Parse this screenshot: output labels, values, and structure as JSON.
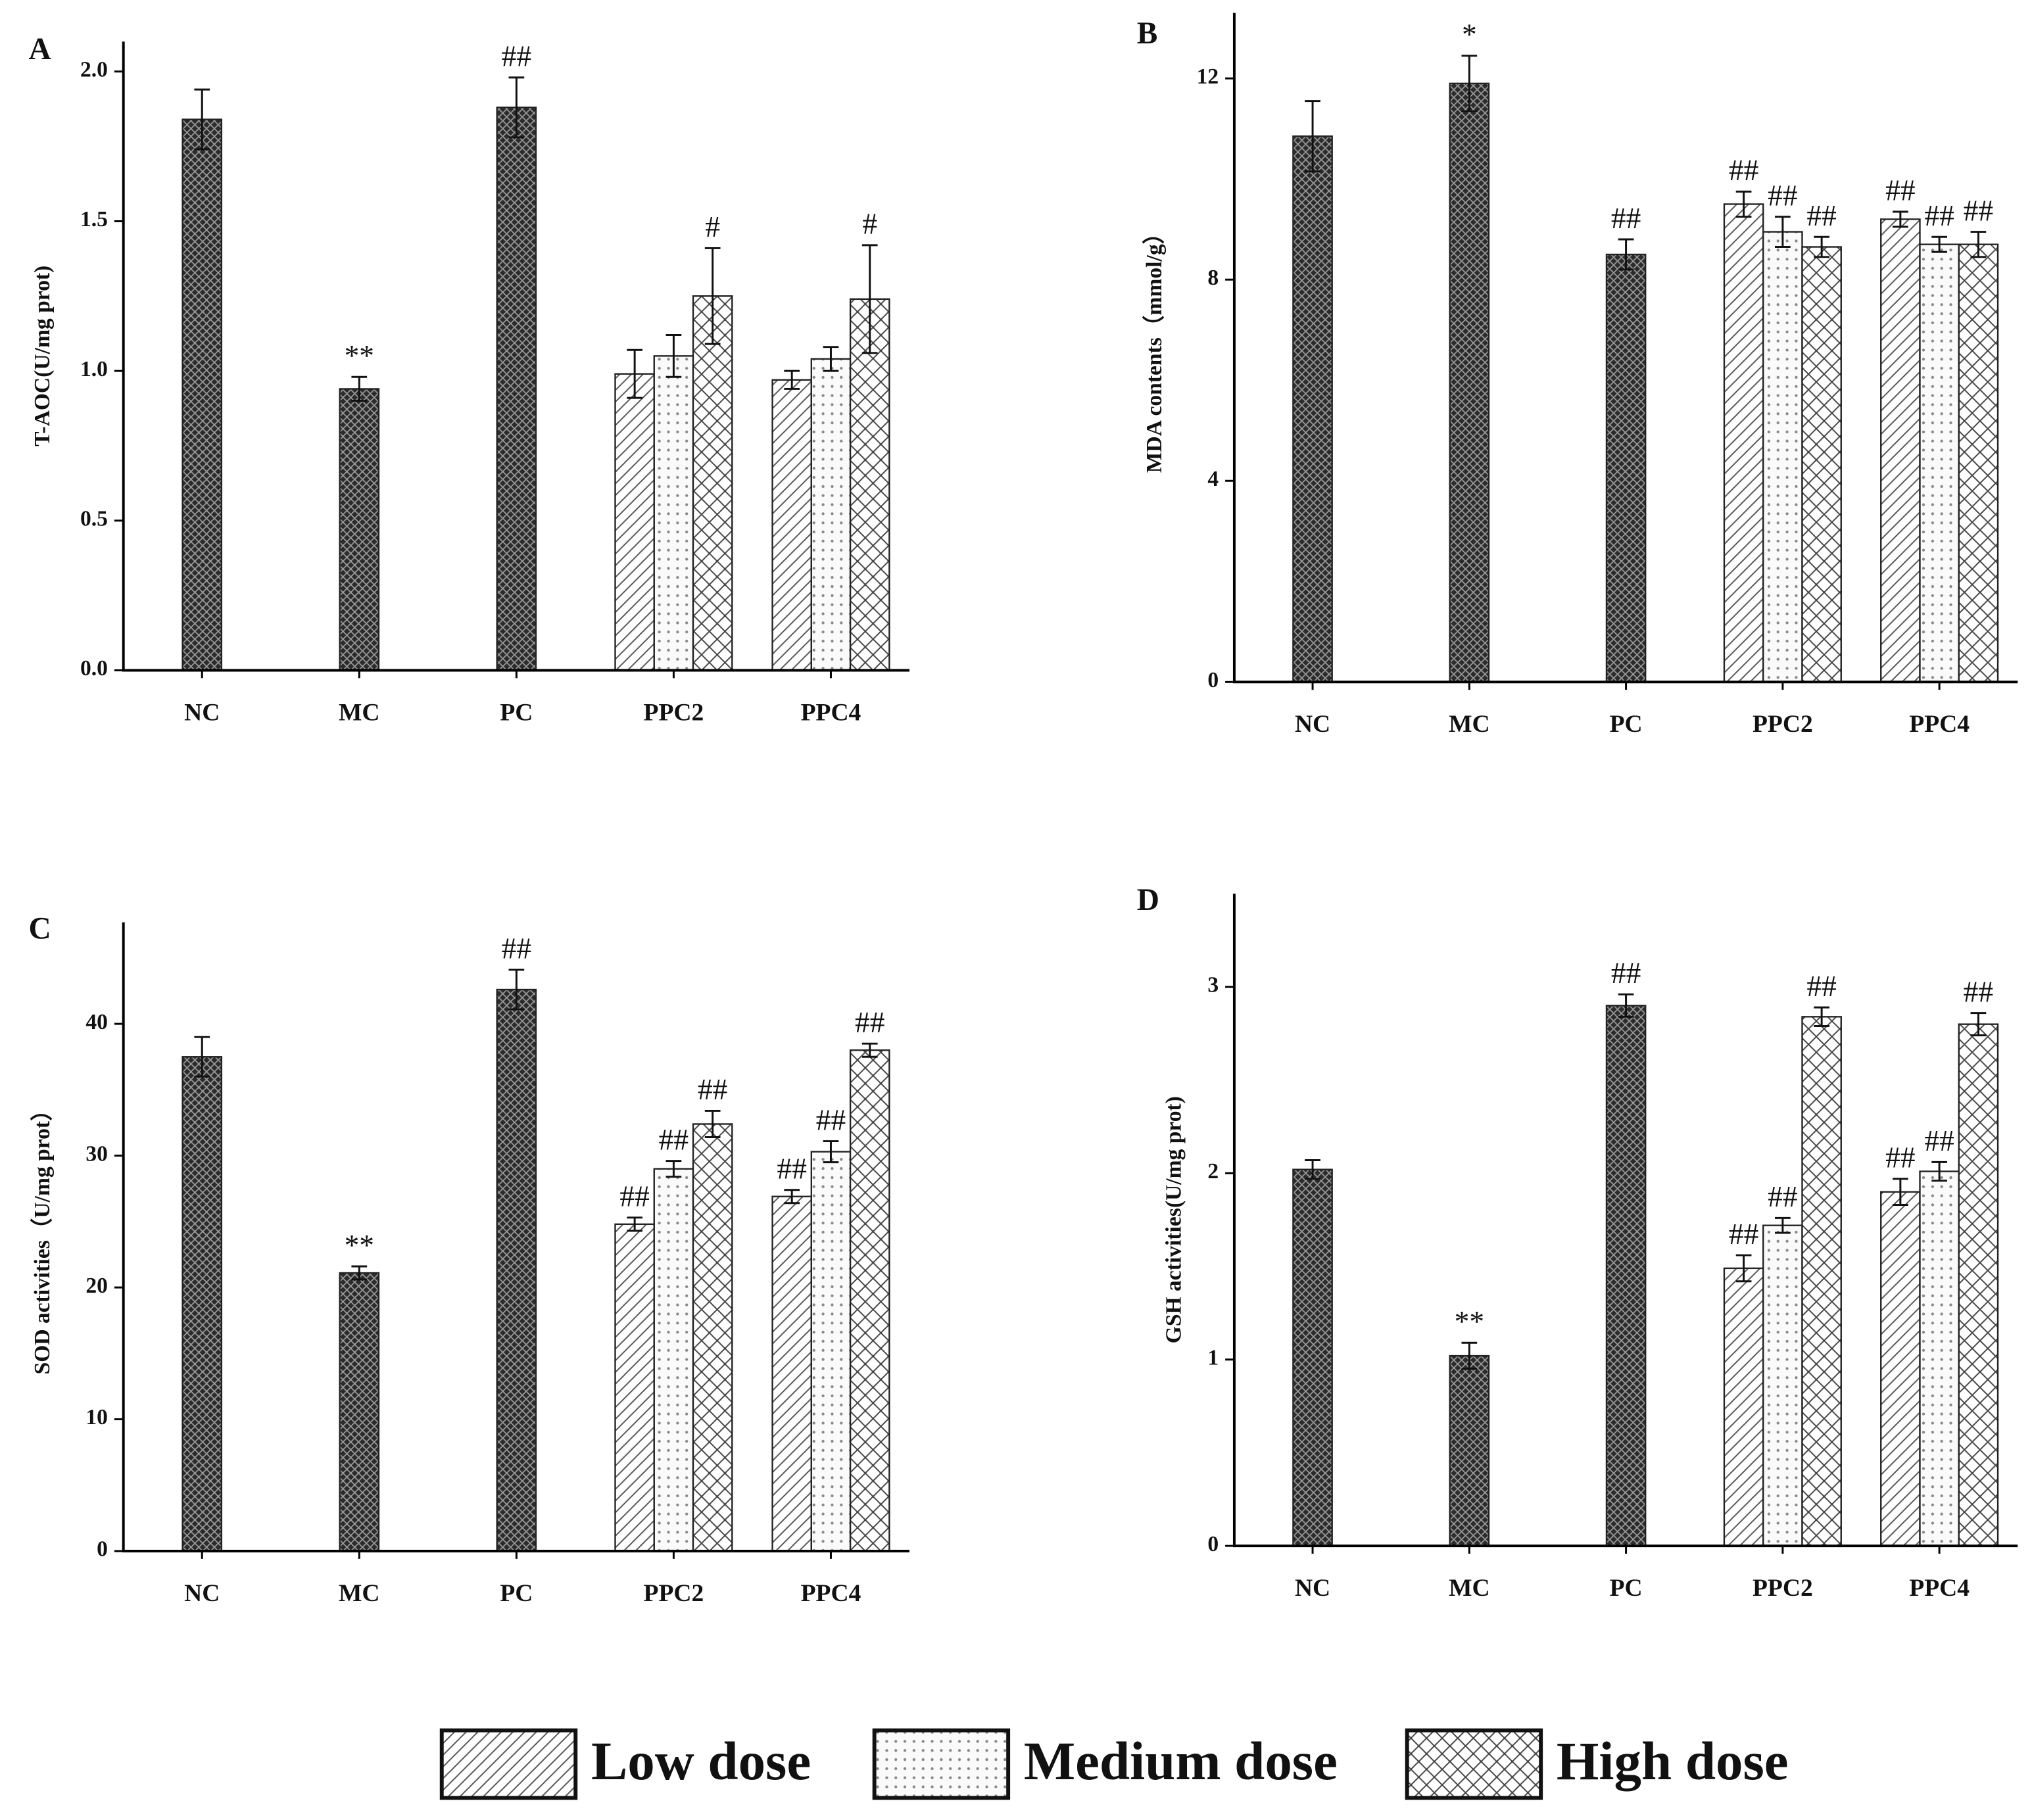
{
  "chart_data": [
    {
      "type": "bar",
      "panel": "A",
      "ylabel": "T-AOC(U/mg prot)",
      "categories": [
        "NC",
        "MC",
        "PC",
        "PPC2",
        "PPC4"
      ],
      "ylim": [
        0,
        2.1
      ],
      "yticks": [
        {
          "value": 0,
          "label": "0.0"
        },
        0.5,
        {
          "value": 1,
          "label": "1.0"
        },
        1.5,
        {
          "value": 2,
          "label": "2.0"
        }
      ],
      "series": [
        {
          "pattern": "dense",
          "values": [
            1.84,
            0.94,
            1.88,
            null,
            null
          ],
          "errors": [
            0.1,
            0.04,
            0.1,
            null,
            null
          ],
          "annotations": [
            null,
            "**",
            "##",
            null,
            null
          ]
        },
        {
          "pattern": "hatch",
          "values": [
            null,
            null,
            null,
            0.99,
            0.97
          ],
          "errors": [
            null,
            null,
            null,
            0.08,
            0.03
          ],
          "annotations": [
            null,
            null,
            null,
            null,
            null
          ]
        },
        {
          "pattern": "dots",
          "values": [
            null,
            null,
            null,
            1.05,
            1.04
          ],
          "errors": [
            null,
            null,
            null,
            0.07,
            0.04
          ],
          "annotations": [
            null,
            null,
            null,
            null,
            null
          ]
        },
        {
          "pattern": "cross",
          "values": [
            null,
            null,
            null,
            1.25,
            1.24
          ],
          "errors": [
            null,
            null,
            null,
            0.16,
            0.18
          ],
          "annotations": [
            null,
            null,
            null,
            "#",
            "#"
          ]
        }
      ]
    },
    {
      "type": "bar",
      "panel": "B",
      "ylabel": "MDA contents（mmol/g）",
      "categories": [
        "NC",
        "MC",
        "PC",
        "PPC2",
        "PPC4"
      ],
      "ylim": [
        0,
        13.3
      ],
      "yticks": [
        0,
        4,
        8,
        12
      ],
      "series": [
        {
          "pattern": "dense",
          "values": [
            10.85,
            11.9,
            8.5,
            null,
            null
          ],
          "errors": [
            0.7,
            0.55,
            0.3,
            null,
            null
          ],
          "annotations": [
            null,
            "*",
            "##",
            null,
            null
          ]
        },
        {
          "pattern": "hatch",
          "values": [
            null,
            null,
            null,
            9.5,
            9.2
          ],
          "errors": [
            null,
            null,
            null,
            0.25,
            0.15
          ],
          "annotations": [
            null,
            null,
            null,
            "##",
            "##"
          ]
        },
        {
          "pattern": "dots",
          "values": [
            null,
            null,
            null,
            8.95,
            8.7
          ],
          "errors": [
            null,
            null,
            null,
            0.3,
            0.15
          ],
          "annotations": [
            null,
            null,
            null,
            "##",
            "##"
          ]
        },
        {
          "pattern": "cross",
          "values": [
            null,
            null,
            null,
            8.65,
            8.7
          ],
          "errors": [
            null,
            null,
            null,
            0.2,
            0.25
          ],
          "annotations": [
            null,
            null,
            null,
            "##",
            "##"
          ]
        }
      ]
    },
    {
      "type": "bar",
      "panel": "C",
      "ylabel": "SOD activities（U/mg prot）",
      "categories": [
        "NC",
        "MC",
        "PC",
        "PPC2",
        "PPC4"
      ],
      "ylim": [
        0,
        47.7
      ],
      "yticks": [
        0,
        10,
        20,
        30,
        40
      ],
      "series": [
        {
          "pattern": "dense",
          "values": [
            37.5,
            21.1,
            42.6,
            null,
            null
          ],
          "errors": [
            1.5,
            0.5,
            1.5,
            null,
            null
          ],
          "annotations": [
            null,
            "**",
            "##",
            null,
            null
          ]
        },
        {
          "pattern": "hatch",
          "values": [
            null,
            null,
            null,
            24.8,
            26.9
          ],
          "errors": [
            null,
            null,
            null,
            0.5,
            0.5
          ],
          "annotations": [
            null,
            null,
            null,
            "##",
            "##"
          ]
        },
        {
          "pattern": "dots",
          "values": [
            null,
            null,
            null,
            29.0,
            30.3
          ],
          "errors": [
            null,
            null,
            null,
            0.6,
            0.8
          ],
          "annotations": [
            null,
            null,
            null,
            "##",
            "##"
          ]
        },
        {
          "pattern": "cross",
          "values": [
            null,
            null,
            null,
            32.4,
            38.0
          ],
          "errors": [
            null,
            null,
            null,
            1.0,
            0.5
          ],
          "annotations": [
            null,
            null,
            null,
            "##",
            "##"
          ]
        }
      ]
    },
    {
      "type": "bar",
      "panel": "D",
      "ylabel": "GSH activities(U/mg prot)",
      "categories": [
        "NC",
        "MC",
        "PC",
        "PPC2",
        "PPC4"
      ],
      "ylim": [
        0,
        3.5
      ],
      "yticks": [
        0,
        1,
        2,
        3
      ],
      "series": [
        {
          "pattern": "dense",
          "values": [
            2.02,
            1.02,
            2.9,
            null,
            null
          ],
          "errors": [
            0.05,
            0.07,
            0.06,
            null,
            null
          ],
          "annotations": [
            null,
            "**",
            "##",
            null,
            null
          ]
        },
        {
          "pattern": "hatch",
          "values": [
            null,
            null,
            null,
            1.49,
            1.9
          ],
          "errors": [
            null,
            null,
            null,
            0.07,
            0.07
          ],
          "annotations": [
            null,
            null,
            null,
            "##",
            "##"
          ]
        },
        {
          "pattern": "dots",
          "values": [
            null,
            null,
            null,
            1.72,
            2.01
          ],
          "errors": [
            null,
            null,
            null,
            0.04,
            0.05
          ],
          "annotations": [
            null,
            null,
            null,
            "##",
            "##"
          ]
        },
        {
          "pattern": "cross",
          "values": [
            null,
            null,
            null,
            2.84,
            2.8
          ],
          "errors": [
            null,
            null,
            null,
            0.05,
            0.06
          ],
          "annotations": [
            null,
            null,
            null,
            "##",
            "##"
          ]
        }
      ]
    }
  ],
  "legend": [
    {
      "name": "Low dose",
      "pattern": "hatch"
    },
    {
      "name": "Medium dose",
      "pattern": "dots"
    },
    {
      "name": "High dose",
      "pattern": "cross"
    }
  ]
}
